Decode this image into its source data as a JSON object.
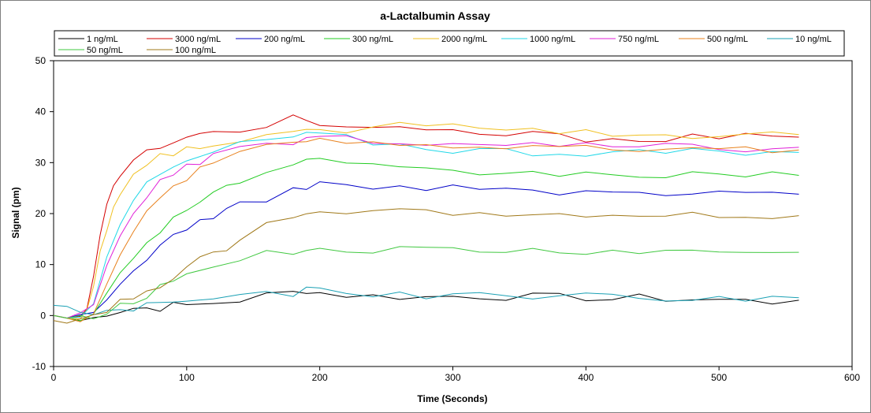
{
  "chart_data": {
    "type": "line",
    "title": "a-Lactalbumin Assay",
    "xlabel": "Time (Seconds)",
    "ylabel": "Signal (pm)",
    "xlim": [
      0,
      600
    ],
    "ylim": [
      -10,
      50
    ],
    "xticks": [
      0,
      100,
      200,
      300,
      400,
      500,
      600
    ],
    "yticks": [
      -10,
      0,
      10,
      20,
      30,
      40,
      50
    ],
    "grid": false,
    "legend_position": "top",
    "series": [
      {
        "name": "1 ng/mL",
        "color": "#000000",
        "x": [
          0,
          10,
          20,
          30,
          40,
          50,
          60,
          70,
          80,
          90,
          100,
          120,
          140,
          160,
          180,
          190,
          200,
          220,
          240,
          260,
          280,
          300,
          320,
          340,
          360,
          380,
          400,
          420,
          440,
          460,
          480,
          500,
          520,
          540,
          560
        ],
        "y": [
          0,
          -0.5,
          -1,
          -0.5,
          0.5,
          1,
          1.5,
          1.5,
          1.5,
          2,
          2,
          2.5,
          3,
          4,
          4.5,
          5,
          4.5,
          4,
          3.8,
          3.7,
          3.6,
          3.8,
          3.8,
          3.7,
          3.7,
          3.6,
          3.5,
          3.2,
          3.5,
          3.3,
          3.2,
          3.1,
          2.9,
          2.6,
          3
        ]
      },
      {
        "name": "3000 ng/mL",
        "color": "#d40000",
        "x": [
          0,
          10,
          20,
          25,
          30,
          35,
          40,
          45,
          50,
          60,
          70,
          80,
          90,
          100,
          110,
          120,
          140,
          160,
          180,
          190,
          200,
          220,
          240,
          260,
          280,
          300,
          320,
          340,
          360,
          380,
          400,
          420,
          440,
          460,
          480,
          500,
          520,
          540,
          560
        ],
        "y": [
          0,
          -0.5,
          -0.5,
          2,
          8,
          16,
          22,
          25,
          27.5,
          30,
          32,
          33.5,
          33.5,
          34.5,
          35.2,
          36,
          36.5,
          37.5,
          39,
          38.5,
          37.5,
          36.8,
          36.5,
          36.3,
          36.1,
          36,
          35.8,
          35.5,
          35.5,
          35,
          34.8,
          34.8,
          34.8,
          34.8,
          35,
          35,
          35,
          35,
          35
        ]
      },
      {
        "name": "200 ng/mL",
        "color": "#0000c8",
        "x": [
          0,
          10,
          20,
          30,
          40,
          50,
          60,
          70,
          80,
          90,
          100,
          110,
          120,
          130,
          140,
          160,
          180,
          190,
          200,
          220,
          240,
          260,
          280,
          300,
          320,
          340,
          360,
          380,
          400,
          420,
          440,
          460,
          480,
          500,
          520,
          540,
          560
        ],
        "y": [
          0,
          -0.5,
          -0.5,
          0.5,
          3,
          6,
          9,
          11.5,
          13.5,
          15.5,
          17.5,
          18.5,
          19.5,
          20.5,
          21.5,
          23,
          24.5,
          25.5,
          25.8,
          25.6,
          25.3,
          25,
          24.8,
          25,
          24.8,
          24.8,
          24.5,
          24,
          24,
          24,
          24,
          23.8,
          23.8,
          23.8,
          24,
          24,
          23.8
        ]
      },
      {
        "name": "300 ng/mL",
        "color": "#22cc22",
        "x": [
          0,
          10,
          20,
          30,
          40,
          50,
          60,
          70,
          80,
          90,
          100,
          110,
          120,
          130,
          140,
          160,
          180,
          190,
          200,
          220,
          240,
          260,
          280,
          300,
          320,
          340,
          360,
          380,
          400,
          420,
          440,
          460,
          480,
          500,
          520,
          540,
          560
        ],
        "y": [
          0,
          -0.5,
          -0.5,
          1,
          4,
          8,
          11.5,
          14.5,
          17,
          19,
          21,
          22.5,
          24,
          25,
          26.5,
          28,
          29.5,
          30,
          30.3,
          29.5,
          29,
          28.5,
          28.3,
          28,
          28,
          28,
          27.8,
          27.8,
          27.8,
          27.8,
          27.6,
          27.5,
          27.5,
          27.5,
          27.5,
          27.5,
          27.5
        ]
      },
      {
        "name": "2000 ng/mL",
        "color": "#f0c020",
        "x": [
          0,
          10,
          20,
          25,
          30,
          35,
          40,
          45,
          50,
          60,
          70,
          80,
          90,
          100,
          110,
          120,
          140,
          160,
          180,
          190,
          200,
          220,
          240,
          260,
          280,
          300,
          320,
          340,
          360,
          380,
          400,
          420,
          440,
          460,
          480,
          500,
          520,
          540,
          560
        ],
        "y": [
          0,
          -0.5,
          -0.5,
          1,
          5,
          12,
          17,
          21,
          24,
          27.5,
          29.5,
          31,
          32,
          32.5,
          33,
          34,
          34.5,
          35,
          35.5,
          35.8,
          36,
          36.5,
          37,
          37.5,
          38,
          38,
          37.5,
          37,
          36.5,
          36.3,
          36,
          35.8,
          35.6,
          35.5,
          35.5,
          35.5,
          35.5,
          35.5,
          35.5
        ]
      },
      {
        "name": "1000 ng/mL",
        "color": "#20d8e8",
        "x": [
          0,
          10,
          20,
          30,
          40,
          50,
          60,
          70,
          80,
          90,
          100,
          110,
          120,
          140,
          160,
          180,
          190,
          200,
          220,
          240,
          260,
          280,
          300,
          320,
          340,
          360,
          380,
          400,
          420,
          440,
          460,
          480,
          500,
          520,
          540,
          560
        ],
        "y": [
          0,
          -0.5,
          -0.5,
          3,
          12,
          18.5,
          23,
          25.5,
          27.5,
          29,
          30,
          31,
          32,
          33.5,
          34.5,
          35,
          35.3,
          35.5,
          34.8,
          34,
          33.5,
          33,
          32.5,
          32.5,
          32.3,
          32,
          32,
          32,
          32,
          32,
          32,
          32,
          31.8,
          31.8,
          31.8,
          32
        ]
      },
      {
        "name": "750 ng/mL",
        "color": "#e020d8",
        "x": [
          0,
          10,
          20,
          30,
          40,
          50,
          60,
          70,
          80,
          90,
          100,
          110,
          120,
          140,
          160,
          180,
          190,
          200,
          220,
          240,
          260,
          280,
          300,
          320,
          340,
          360,
          380,
          400,
          420,
          440,
          460,
          480,
          500,
          520,
          540,
          560
        ],
        "y": [
          0,
          -0.5,
          0,
          2,
          10,
          16,
          20.5,
          23.5,
          26,
          27.5,
          29,
          30,
          31,
          32.5,
          33.5,
          34.3,
          34.8,
          35,
          34.5,
          34,
          33.8,
          33.6,
          33.5,
          33.4,
          33.3,
          33.3,
          33.2,
          33.2,
          33.1,
          33,
          33,
          33,
          33,
          32.8,
          32.8,
          33
        ]
      },
      {
        "name": "500 ng/mL",
        "color": "#e8801c",
        "x": [
          0,
          10,
          20,
          30,
          40,
          50,
          60,
          70,
          80,
          90,
          100,
          110,
          120,
          140,
          160,
          180,
          190,
          200,
          220,
          240,
          260,
          280,
          300,
          320,
          340,
          360,
          380,
          400,
          420,
          440,
          460,
          480,
          500,
          520,
          540,
          560
        ],
        "y": [
          0,
          -0.5,
          -0.5,
          1,
          6,
          12,
          17,
          20.5,
          23.5,
          25.5,
          27,
          28.5,
          30,
          31.5,
          33,
          34,
          34.5,
          34.8,
          34.5,
          34,
          33.8,
          33.5,
          33.3,
          33,
          33,
          33,
          32.8,
          32.8,
          32.6,
          32.5,
          32.5,
          32.5,
          32.5,
          32.5,
          32.5,
          32.5
        ]
      },
      {
        "name": "10 ng/mL",
        "color": "#1aa0b4",
        "x": [
          0,
          10,
          20,
          30,
          40,
          50,
          60,
          70,
          80,
          90,
          100,
          120,
          140,
          160,
          180,
          190,
          200,
          220,
          240,
          260,
          280,
          300,
          320,
          340,
          360,
          380,
          400,
          420,
          440,
          460,
          480,
          500,
          520,
          540,
          560
        ],
        "y": [
          2,
          1.8,
          1,
          0,
          0.5,
          1,
          1.5,
          2,
          2.5,
          2.8,
          3,
          3.2,
          3.5,
          4,
          4.5,
          4.8,
          4.7,
          4.5,
          4.3,
          4.2,
          4,
          4,
          4,
          4,
          3.9,
          3.8,
          3.7,
          3.7,
          3.6,
          3.6,
          3.5,
          3.5,
          3.5,
          3.5,
          3.5
        ]
      },
      {
        "name": "50 ng/mL",
        "color": "#40c840",
        "x": [
          0,
          10,
          20,
          30,
          40,
          50,
          60,
          70,
          80,
          90,
          100,
          120,
          140,
          160,
          180,
          190,
          200,
          220,
          240,
          260,
          280,
          300,
          320,
          340,
          360,
          380,
          400,
          420,
          440,
          460,
          480,
          500,
          520,
          540,
          560
        ],
        "y": [
          0,
          -0.5,
          0,
          0,
          1,
          2,
          3,
          4,
          5.5,
          7,
          8,
          10,
          11,
          12,
          12.5,
          12.8,
          13,
          12.8,
          12.8,
          12.8,
          12.8,
          12.8,
          12.6,
          12.6,
          12.6,
          12.5,
          12.5,
          12.5,
          12.5,
          12.4,
          12.4,
          12.4,
          12.4,
          12.4,
          12.4
        ]
      },
      {
        "name": "100 ng/mL",
        "color": "#a07818",
        "x": [
          0,
          10,
          20,
          30,
          40,
          50,
          60,
          70,
          80,
          90,
          100,
          110,
          120,
          130,
          140,
          160,
          180,
          190,
          200,
          220,
          240,
          260,
          280,
          300,
          320,
          340,
          360,
          380,
          400,
          420,
          440,
          460,
          480,
          500,
          520,
          540,
          560
        ],
        "y": [
          -1,
          -1.5,
          -1,
          0,
          1,
          2.5,
          4,
          5,
          6,
          7.5,
          9,
          11,
          12,
          13.5,
          15,
          17.5,
          19.5,
          20.5,
          20.8,
          20.5,
          20.3,
          20.2,
          20,
          20,
          20,
          20,
          19.9,
          19.8,
          19.8,
          19.7,
          19.7,
          19.6,
          19.6,
          19.6,
          19.6,
          19.6,
          19.6
        ]
      }
    ]
  }
}
